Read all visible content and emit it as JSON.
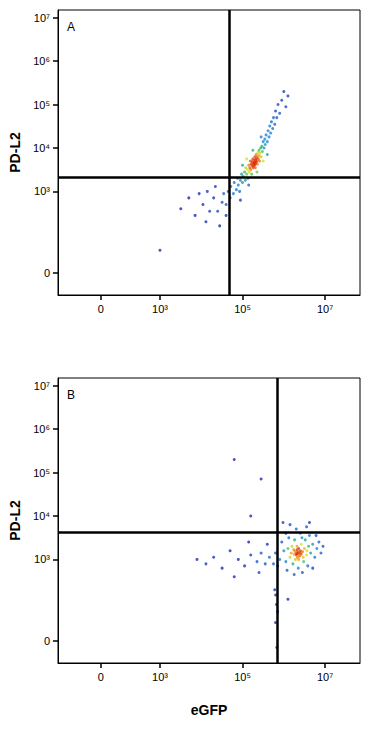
{
  "chart_data": [
    {
      "type": "scatter",
      "title": "A",
      "y_label": "PD-L2",
      "log": true,
      "xlim": [
        -400,
        70000000
      ],
      "ylim": [
        -40,
        15000000
      ],
      "xticks": [
        0,
        {
          "value": 1000,
          "label": "10³"
        },
        {
          "value": 100000,
          "label": "10⁵"
        },
        {
          "value": 10000000,
          "label": "10⁷"
        }
      ],
      "yticks": [
        0,
        {
          "value": 1000,
          "label": "10³"
        },
        {
          "value": 10000,
          "label": "10⁴"
        },
        {
          "value": 100000,
          "label": "10⁵"
        },
        {
          "value": 1000000,
          "label": "10⁶"
        },
        {
          "value": 10000000,
          "label": "10⁷"
        }
      ],
      "gates": {
        "x": 47000,
        "y": 2100
      },
      "x": [
        25000,
        32000,
        35000,
        40000,
        45000,
        50000,
        52000,
        60000,
        63000,
        71000,
        76000,
        79000,
        85000,
        89000,
        95000,
        100000,
        105000,
        112000,
        117000,
        120000,
        126000,
        132000,
        135000,
        141000,
        145000,
        151000,
        155000,
        158000,
        162000,
        166000,
        170000,
        174000,
        178000,
        182000,
        186000,
        191000,
        195000,
        200000,
        200000,
        204000,
        209000,
        214000,
        219000,
        224000,
        229000,
        234000,
        240000,
        245000,
        251000,
        257000,
        263000,
        275000,
        282000,
        295000,
        302000,
        316000,
        331000,
        347000,
        355000,
        372000,
        398000,
        417000,
        437000,
        457000,
        479000,
        501000,
        537000,
        562000,
        603000,
        631000,
        676000,
        724000,
        794000,
        891000,
        1000000,
        1120000,
        1260000,
        398000,
        316000,
        126000,
        100000,
        282000,
        89000,
        141000,
        224000,
        178000,
        3200,
        5000,
        7100,
        8900,
        11000,
        14000,
        16000,
        20000,
        22000,
        13000,
        1000,
        28000,
        40000,
        191000,
        204000,
        182000,
        214000,
        195000,
        186000,
        209000,
        200000
      ],
      "y": [
        350,
        560,
        890,
        500,
        1000,
        710,
        1300,
        890,
        1600,
        1100,
        2000,
        1400,
        1000,
        1800,
        2500,
        1600,
        2200,
        2800,
        1800,
        3500,
        2500,
        3200,
        2000,
        4000,
        2800,
        3500,
        5000,
        3200,
        4200,
        2500,
        4800,
        3800,
        5600,
        3500,
        4500,
        5200,
        4000,
        6300,
        4600,
        3500,
        5500,
        7100,
        4800,
        6000,
        4200,
        7900,
        5600,
        6600,
        8900,
        5000,
        7600,
        10000,
        6300,
        11000,
        8300,
        14000,
        10000,
        16000,
        12000,
        20000,
        14000,
        25000,
        18000,
        32000,
        22000,
        40000,
        28000,
        50000,
        35000,
        71000,
        50000,
        100000,
        63000,
        126000,
        200000,
        89000,
        158000,
        7100,
        5000,
        5600,
        4000,
        18000,
        630,
        1400,
        2800,
        8900,
        400,
        710,
        280,
        890,
        500,
        1000,
        350,
        710,
        1300,
        200,
        40,
        160,
        280,
        4300,
        4900,
        4100,
        5100,
        4700,
        3800,
        4400,
        5200
      ]
    },
    {
      "type": "scatter",
      "title": "B",
      "x_label": "eGFP",
      "y_label": "PD-L2",
      "log": true,
      "xlim": [
        -400,
        70000000
      ],
      "ylim": [
        -40,
        15000000
      ],
      "xticks": [
        0,
        {
          "value": 1000,
          "label": "10³"
        },
        {
          "value": 100000,
          "label": "10⁵"
        },
        {
          "value": 10000000,
          "label": "10⁷"
        }
      ],
      "yticks": [
        0,
        {
          "value": 1000,
          "label": "10³"
        },
        {
          "value": 10000,
          "label": "10⁴"
        },
        {
          "value": 100000,
          "label": "10⁵"
        },
        {
          "value": 1000000,
          "label": "10⁶"
        },
        {
          "value": 10000000,
          "label": "10⁷"
        }
      ],
      "gates": {
        "x": 680000,
        "y": 4300
      },
      "x": [
        2240000,
        2000000,
        2510000,
        2090000,
        2400000,
        2630000,
        1910000,
        2290000,
        2140000,
        2820000,
        1780000,
        2340000,
        2190000,
        2450000,
        2040000,
        3160000,
        3550000,
        3980000,
        4470000,
        5010000,
        5620000,
        6310000,
        7080000,
        7940000,
        1580000,
        1410000,
        1260000,
        1120000,
        1000000,
        891000,
        794000,
        708000,
        631000,
        562000,
        3020000,
        3310000,
        3800000,
        4170000,
        2750000,
        1820000,
        1660000,
        1320000,
        1200000,
        2240000,
        2510000,
        2000000,
        3550000,
        5010000,
        6030000,
        8910000,
        1120000,
        1410000,
        955000,
        4170000,
        1780000,
        2820000,
        2090000,
        2630000,
        2290000,
        1910000,
        2950000,
        1740000,
        3630000,
        1510000,
        447000,
        355000,
        282000,
        224000,
        158000,
        112000,
        79000,
        50000,
        32000,
        20000,
        13000,
        7900,
        398000,
        251000,
        141000,
        63000,
        631000,
        661000,
        603000,
        708000,
        631000,
        676000,
        1260000,
        63000,
        282000,
        158000
      ],
      "y": [
        1400,
        1260,
        1580,
        1660,
        1200,
        1320,
        1510,
        1780,
        1120,
        1510,
        1320,
        1380,
        1480,
        1450,
        1350,
        1780,
        1260,
        2000,
        1410,
        2240,
        1120,
        1780,
        2510,
        1410,
        2000,
        1120,
        1780,
        890,
        1580,
        2510,
        1000,
        710,
        1410,
        790,
        890,
        2820,
        710,
        3550,
        3160,
        2820,
        790,
        3160,
        560,
        630,
        4000,
        5000,
        5620,
        630,
        3550,
        2000,
        3980,
        6310,
        7080,
        7080,
        450,
        500,
        2000,
        2240,
        1000,
        1000,
        1120,
        1660,
        1580,
        1410,
        1120,
        790,
        1410,
        890,
        1260,
        710,
        1000,
        1580,
        630,
        1120,
        790,
        1000,
        2240,
        500,
        2510,
        400,
        150,
        90,
        200,
        60,
        30,
        -10,
        120,
        200000,
        71000,
        10000
      ]
    }
  ]
}
